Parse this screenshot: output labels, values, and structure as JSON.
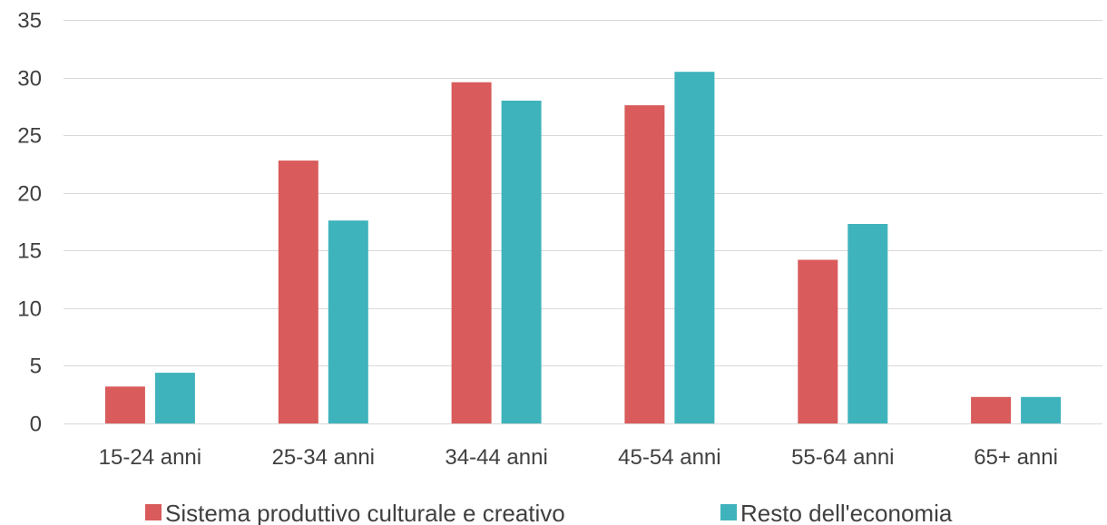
{
  "colors": {
    "series_1": "#d95b5b",
    "series_2": "#3fb3bc",
    "grid": "#d9d9d9",
    "text": "#404040"
  },
  "chart_data": {
    "type": "bar",
    "title": "",
    "xlabel": "",
    "ylabel": "",
    "ylim": [
      0,
      35
    ],
    "yticks": [
      0,
      5,
      10,
      15,
      20,
      25,
      30,
      35
    ],
    "ytick_labels": [
      "0",
      "5",
      "10",
      "15",
      "20",
      "25",
      "30",
      "35"
    ],
    "grid": true,
    "legend_position": "bottom",
    "categories": [
      "15-24 anni",
      "25-34 anni",
      "34-44 anni",
      "45-54 anni",
      "55-64 anni",
      "65+ anni"
    ],
    "series": [
      {
        "name": "Sistema produttivo culturale e creativo",
        "values": [
          3.2,
          22.8,
          29.6,
          27.6,
          14.2,
          2.3
        ]
      },
      {
        "name": "Resto dell'economia",
        "values": [
          4.4,
          17.6,
          28.0,
          30.5,
          17.3,
          2.3
        ]
      }
    ]
  }
}
